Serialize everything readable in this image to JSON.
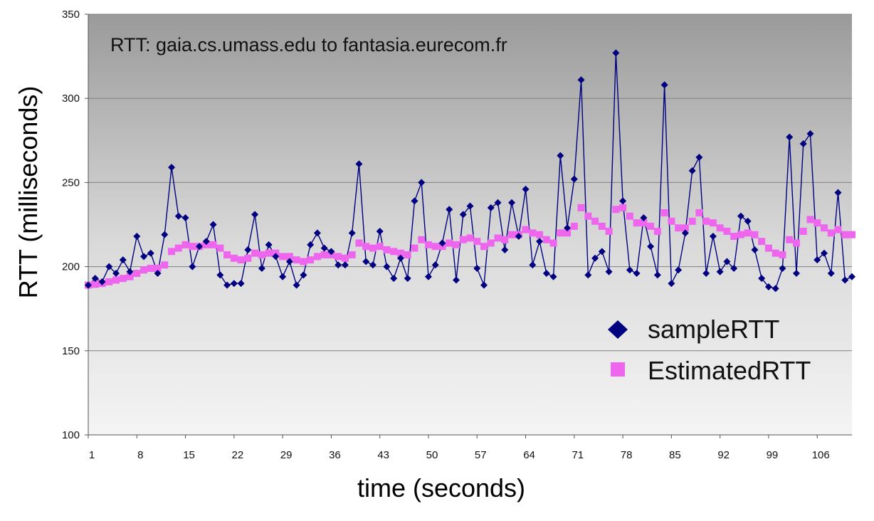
{
  "chart_data": {
    "type": "line",
    "title": "RTT: gaia.cs.umass.edu to fantasia.eurecom.fr",
    "xlabel": "time (seconds)",
    "ylabel": "RTT (milliseconds)",
    "ylim": [
      100,
      350
    ],
    "yticks": [
      100,
      150,
      200,
      250,
      300,
      350
    ],
    "xticks": [
      1,
      8,
      15,
      22,
      29,
      36,
      43,
      50,
      57,
      64,
      71,
      78,
      85,
      92,
      99,
      106
    ],
    "xlim": [
      1,
      111
    ],
    "grid": "horizontal",
    "legend_position": "lower-right",
    "background": "gradient-gray",
    "series": [
      {
        "name": "sampleRTT",
        "color": "#000080",
        "marker": "diamond",
        "x": [
          1,
          2,
          3,
          4,
          5,
          6,
          7,
          8,
          9,
          10,
          11,
          12,
          13,
          14,
          15,
          16,
          17,
          18,
          19,
          20,
          21,
          22,
          23,
          24,
          25,
          26,
          27,
          28,
          29,
          30,
          31,
          32,
          33,
          34,
          35,
          36,
          37,
          38,
          39,
          40,
          41,
          42,
          43,
          44,
          45,
          46,
          47,
          48,
          49,
          50,
          51,
          52,
          53,
          54,
          55,
          56,
          57,
          58,
          59,
          60,
          61,
          62,
          63,
          64,
          65,
          66,
          67,
          68,
          69,
          70,
          71,
          72,
          73,
          74,
          75,
          76,
          77,
          78,
          79,
          80,
          81,
          82,
          83,
          84,
          85,
          86,
          87,
          88,
          89,
          90,
          91,
          92,
          93,
          94,
          95,
          96,
          97,
          98,
          99,
          100,
          101,
          102,
          103,
          104,
          105,
          106,
          107,
          108,
          109,
          110,
          111
        ],
        "values": [
          189,
          193,
          191,
          200,
          196,
          204,
          197,
          218,
          206,
          208,
          196,
          219,
          259,
          230,
          229,
          200,
          212,
          215,
          225,
          195,
          189,
          190,
          190,
          210,
          231,
          199,
          213,
          206,
          194,
          203,
          189,
          195,
          213,
          220,
          211,
          209,
          201,
          201,
          220,
          261,
          203,
          201,
          221,
          200,
          193,
          205,
          193,
          239,
          250,
          194,
          201,
          214,
          234,
          192,
          231,
          236,
          199,
          189,
          235,
          238,
          210,
          238,
          218,
          246,
          201,
          215,
          196,
          194,
          266,
          223,
          252,
          311,
          195,
          205,
          209,
          197,
          327,
          239,
          198,
          196,
          229,
          212,
          195,
          308,
          190,
          198,
          220,
          257,
          265,
          196,
          218,
          197,
          203,
          199,
          230,
          227,
          210,
          193,
          188,
          187,
          199,
          277,
          196,
          273,
          279,
          204,
          208,
          196,
          244,
          192,
          194
        ]
      },
      {
        "name": "EstimatedRTT",
        "color": "#ee66ee",
        "marker": "square",
        "x": [
          1,
          2,
          3,
          4,
          5,
          6,
          7,
          8,
          9,
          10,
          11,
          12,
          13,
          14,
          15,
          16,
          17,
          18,
          19,
          20,
          21,
          22,
          23,
          24,
          25,
          26,
          27,
          28,
          29,
          30,
          31,
          32,
          33,
          34,
          35,
          36,
          37,
          38,
          39,
          40,
          41,
          42,
          43,
          44,
          45,
          46,
          47,
          48,
          49,
          50,
          51,
          52,
          53,
          54,
          55,
          56,
          57,
          58,
          59,
          60,
          61,
          62,
          63,
          64,
          65,
          66,
          67,
          68,
          69,
          70,
          71,
          72,
          73,
          74,
          75,
          76,
          77,
          78,
          79,
          80,
          81,
          82,
          83,
          84,
          85,
          86,
          87,
          88,
          89,
          90,
          91,
          92,
          93,
          94,
          95,
          96,
          97,
          98,
          99,
          100,
          101,
          102,
          103,
          104,
          105,
          106,
          107,
          108,
          109,
          110,
          111
        ],
        "values": [
          189,
          189.5,
          190,
          191,
          192,
          193,
          194,
          196,
          198,
          199,
          199,
          201,
          209,
          211,
          213,
          212,
          212,
          213,
          213,
          211,
          207,
          205,
          204,
          205,
          208,
          207,
          208,
          208,
          206,
          206,
          204,
          203,
          204,
          206,
          207,
          207,
          206,
          205,
          207,
          214,
          212,
          211,
          212,
          210,
          209,
          208,
          207,
          211,
          216,
          213,
          212,
          212,
          214,
          213,
          216,
          217,
          215,
          212,
          214,
          217,
          216,
          219,
          219,
          222,
          220,
          219,
          216,
          214,
          220,
          220,
          224,
          235,
          230,
          227,
          224,
          221,
          234,
          235,
          230,
          226,
          226,
          224,
          221,
          232,
          227,
          223,
          223,
          227,
          232,
          227,
          226,
          223,
          221,
          218,
          219,
          220,
          219,
          215,
          211,
          208,
          207,
          216,
          214,
          221,
          228,
          226,
          223,
          220,
          222,
          219,
          219
        ]
      }
    ]
  }
}
